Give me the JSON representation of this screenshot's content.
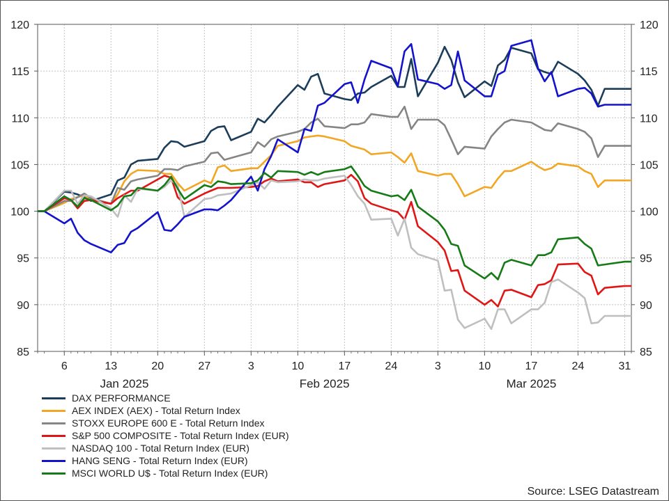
{
  "chart_data": {
    "type": "line",
    "ylim": [
      85,
      120
    ],
    "yticks": [
      85,
      90,
      95,
      100,
      105,
      110,
      115,
      120
    ],
    "grid": true,
    "legend_position": "bottom-left",
    "x_start": "2025-01-02",
    "x_end": "2025-04-01",
    "x_tick_dates": [
      "2025-01-06",
      "2025-01-13",
      "2025-01-20",
      "2025-01-27",
      "2025-02-03",
      "2025-02-10",
      "2025-02-17",
      "2025-02-24",
      "2025-03-03",
      "2025-03-10",
      "2025-03-17",
      "2025-03-24",
      "2025-03-31"
    ],
    "x_tick_labels": [
      "6",
      "13",
      "20",
      "27",
      "3",
      "10",
      "17",
      "24",
      "3",
      "10",
      "17",
      "24",
      "31"
    ],
    "months": [
      {
        "label": "Jan 2025",
        "date": "2025-01-15"
      },
      {
        "label": "Feb 2025",
        "date": "2025-02-14"
      },
      {
        "label": "Mar 2025",
        "date": "2025-03-17"
      }
    ],
    "dates": [
      "2025-01-02",
      "2025-01-03",
      "2025-01-06",
      "2025-01-07",
      "2025-01-08",
      "2025-01-09",
      "2025-01-10",
      "2025-01-13",
      "2025-01-14",
      "2025-01-15",
      "2025-01-16",
      "2025-01-17",
      "2025-01-20",
      "2025-01-21",
      "2025-01-22",
      "2025-01-23",
      "2025-01-24",
      "2025-01-27",
      "2025-01-28",
      "2025-01-29",
      "2025-01-30",
      "2025-01-31",
      "2025-02-03",
      "2025-02-04",
      "2025-02-05",
      "2025-02-06",
      "2025-02-07",
      "2025-02-10",
      "2025-02-11",
      "2025-02-12",
      "2025-02-13",
      "2025-02-14",
      "2025-02-17",
      "2025-02-18",
      "2025-02-19",
      "2025-02-20",
      "2025-02-21",
      "2025-02-24",
      "2025-02-25",
      "2025-02-26",
      "2025-02-27",
      "2025-02-28",
      "2025-03-03",
      "2025-03-04",
      "2025-03-05",
      "2025-03-06",
      "2025-03-07",
      "2025-03-10",
      "2025-03-11",
      "2025-03-12",
      "2025-03-13",
      "2025-03-14",
      "2025-03-17",
      "2025-03-18",
      "2025-03-19",
      "2025-03-20",
      "2025-03-21",
      "2025-03-24",
      "2025-03-25",
      "2025-03-26",
      "2025-03-27",
      "2025-03-28",
      "2025-03-31",
      "2025-04-01"
    ],
    "series": [
      {
        "name": "DAX PERFORMANCE",
        "color": "#1c3d5a",
        "values": [
          100,
          100,
          102.1,
          102,
          101.8,
          101.5,
          101.1,
          101.8,
          103.3,
          103.6,
          105,
          105.4,
          105.6,
          106.8,
          107.5,
          107.4,
          106.9,
          107.5,
          108.6,
          109,
          109.1,
          107.6,
          108.5,
          109.9,
          109.5,
          110.3,
          111.2,
          113.5,
          113,
          114.4,
          114.7,
          112.6,
          112,
          111.9,
          112.6,
          112.7,
          113.3,
          114.5,
          113.3,
          113.3,
          116.3,
          112.3,
          115.9,
          117.6,
          116.2,
          113.8,
          112.2,
          113.9,
          113.4,
          115.6,
          116.2,
          117.5,
          116.9,
          115.2,
          114.9,
          114.7,
          116,
          114.7,
          114,
          113,
          111.3,
          113.1,
          113.1,
          113.1
        ]
      },
      {
        "name": "AEX INDEX (AEX) - Total Return Index",
        "color": "#f2a623",
        "values": [
          100,
          100,
          100.9,
          101.3,
          101.5,
          101.7,
          101.2,
          100.8,
          101.8,
          103.2,
          104,
          104.4,
          104.3,
          104,
          104,
          103,
          102.2,
          103.3,
          103,
          104.7,
          104.9,
          104.3,
          104.6,
          104.6,
          105.3,
          106,
          107,
          107.5,
          107.9,
          108,
          108.1,
          108,
          107.5,
          107,
          106.8,
          106.6,
          106.1,
          106.3,
          105.8,
          105.2,
          106.2,
          104.3,
          103.8,
          104,
          104,
          102.9,
          101.6,
          102.6,
          102.5,
          103.5,
          104.3,
          104.3,
          105.3,
          104.8,
          104.4,
          104.6,
          105.1,
          104.8,
          104.3,
          104,
          102.6,
          103.3,
          103.3,
          103.3
        ]
      },
      {
        "name": "STOXX EUROPE 600 E - Total Return Index",
        "color": "#858585",
        "values": [
          100,
          100,
          101.1,
          101.1,
          101.5,
          101.9,
          101.4,
          100.8,
          102.5,
          102.3,
          103.2,
          103.4,
          103.8,
          104.5,
          104.5,
          104.4,
          104.8,
          105.3,
          106.2,
          106.3,
          105.5,
          105.7,
          106.3,
          107.4,
          106.9,
          107.7,
          108,
          108.5,
          108.8,
          109.5,
          109.9,
          109.1,
          108.9,
          109.3,
          109.3,
          109.5,
          110.4,
          110.1,
          110.1,
          111.2,
          108.8,
          109.8,
          109.8,
          109.2,
          107.7,
          106.1,
          106.9,
          106.7,
          108,
          108.8,
          109.5,
          109.8,
          109.5,
          109.1,
          108.7,
          108.6,
          109.4,
          108.8,
          108.5,
          107.8,
          105.8,
          107,
          107,
          107
        ]
      },
      {
        "name": "S&P 500 COMPOSITE - Total Return Index (EUR)",
        "color": "#e01515",
        "values": [
          100,
          100,
          101.4,
          101.2,
          100.3,
          101.1,
          101.2,
          100.8,
          101.4,
          101.8,
          102.2,
          102.2,
          103.4,
          103.8,
          103.6,
          101.5,
          100.8,
          101.9,
          102.2,
          102.5,
          102.5,
          102.5,
          102.6,
          102.7,
          103.2,
          103.5,
          103.2,
          103.4,
          103.1,
          103.1,
          102.6,
          102.9,
          103.3,
          103.9,
          103.2,
          101.4,
          100.8,
          100.1,
          99.9,
          99.1,
          101,
          98.4,
          96.7,
          95.8,
          93.6,
          93.7,
          91.5,
          90,
          90.5,
          89.8,
          91.5,
          91.6,
          90.8,
          92.1,
          92.2,
          92.6,
          94.3,
          94.4,
          93.5,
          93.1,
          91.1,
          91.8,
          92,
          92
        ]
      },
      {
        "name": "NASDAQ 100 - Total Return Index (EUR)",
        "color": "#bfbfbf",
        "values": [
          100,
          100,
          102.2,
          102.2,
          100.8,
          101.7,
          101.6,
          100.3,
          99.4,
          101.7,
          101,
          102.4,
          102.2,
          102.6,
          103.3,
          102.8,
          99.4,
          101.3,
          101.4,
          101.7,
          101.8,
          101.9,
          102.8,
          103.1,
          102.4,
          103.3,
          103.1,
          103.2,
          103.4,
          103.3,
          103.3,
          103.5,
          103.8,
          102.8,
          101.6,
          100.8,
          99.1,
          99.2,
          97.4,
          99.2,
          96.1,
          95.4,
          94.7,
          91.5,
          91.6,
          88.4,
          87.5,
          88.5,
          87.4,
          89.5,
          89.5,
          88,
          89.5,
          89.5,
          90.2,
          92.4,
          92.7,
          91.3,
          90.7,
          88,
          88.1,
          88.8,
          88.8,
          88.8
        ]
      },
      {
        "name": "HANG SENG - Total Return Index (EUR)",
        "color": "#1313cc",
        "values": [
          100,
          100,
          98.7,
          99.2,
          97.7,
          96.9,
          96.5,
          95.6,
          96.4,
          96.6,
          97.8,
          98.2,
          99.9,
          98,
          97.9,
          98.6,
          99.4,
          100.2,
          100.2,
          100.1,
          100.6,
          101.2,
          103.7,
          102.2,
          104.5,
          105.9,
          107.7,
          106.3,
          108.8,
          108.6,
          111.3,
          111.6,
          113.6,
          113.8,
          111.6,
          114.1,
          116.1,
          115.3,
          113.4,
          117.1,
          117.9,
          114.1,
          113.6,
          113.1,
          113.5,
          117.1,
          114,
          112.3,
          112.3,
          114.6,
          115,
          117.7,
          118.3,
          115.3,
          113.9,
          114.9,
          112.3,
          113.1,
          113.2,
          112.6,
          111.2,
          111.4,
          111.4,
          111.4
        ]
      },
      {
        "name": "MSCI WORLD U$ - Total Return Index (EUR)",
        "color": "#167a16",
        "values": [
          100,
          100,
          101.6,
          101.2,
          100.5,
          101.4,
          101.2,
          100.1,
          100.6,
          101.6,
          101.7,
          102.5,
          102.2,
          102.8,
          103.7,
          102.4,
          101.3,
          102.8,
          102.6,
          103.2,
          103.1,
          102.9,
          103,
          103.3,
          104.1,
          103.6,
          104.3,
          104.2,
          103.9,
          104.2,
          103.9,
          104.2,
          104.5,
          104.8,
          103.8,
          102.7,
          102.2,
          101.6,
          101.7,
          101.2,
          102.3,
          100.5,
          98.9,
          98,
          96.5,
          96.3,
          94.2,
          92.8,
          93.4,
          92.7,
          94.5,
          94.8,
          94.2,
          95.3,
          95.3,
          95.6,
          97,
          97.2,
          96.5,
          96,
          94.2,
          94.3,
          94.6,
          94.6
        ]
      }
    ]
  },
  "source": "Source: LSEG Datastream"
}
